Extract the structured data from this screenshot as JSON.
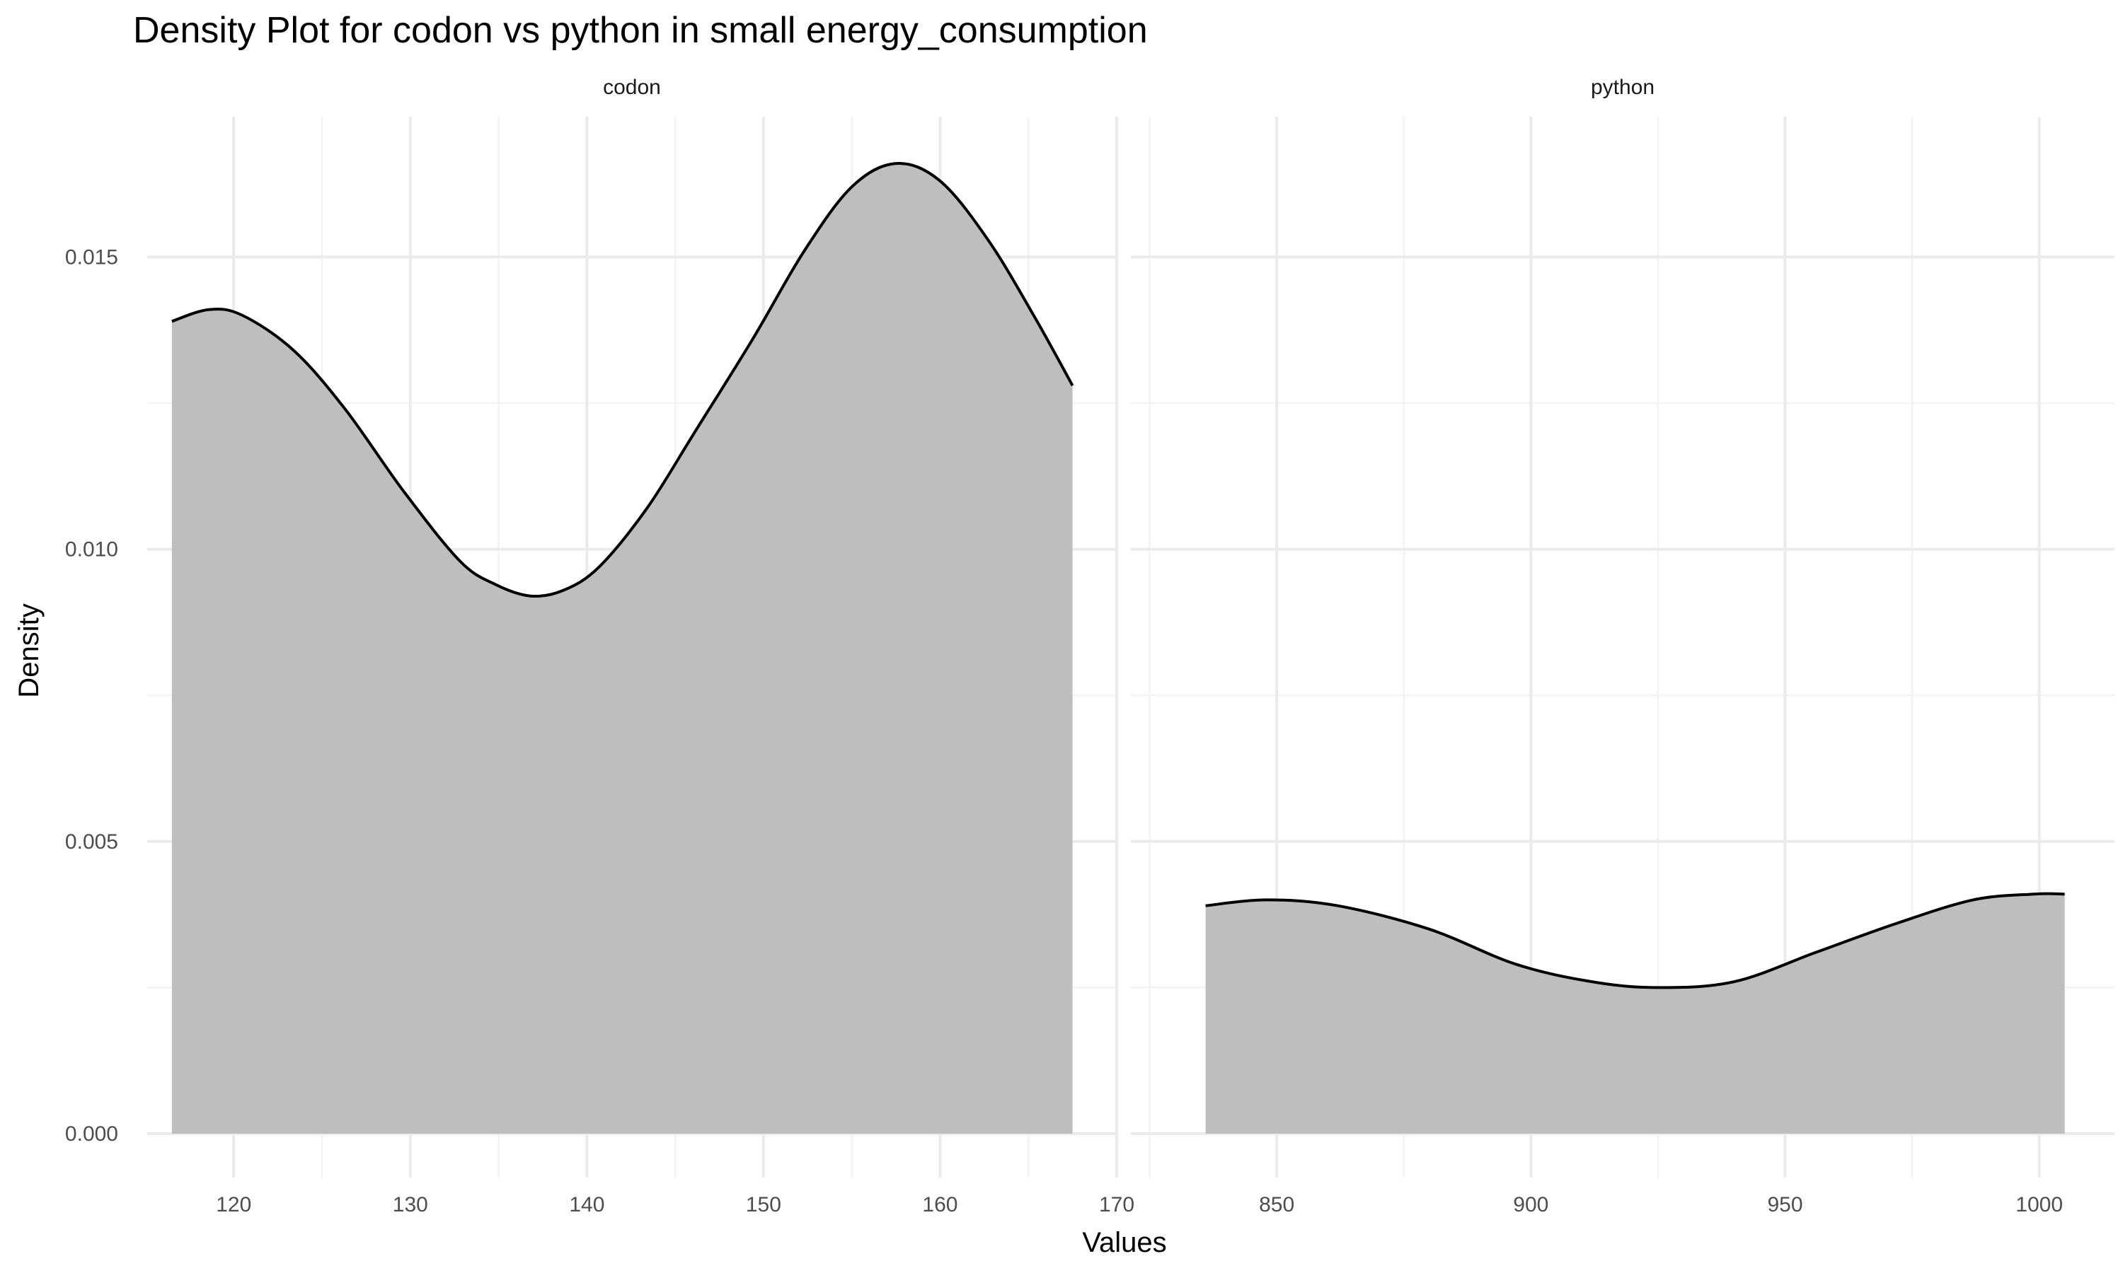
{
  "chart_data": {
    "type": "area",
    "title": "Density Plot for codon vs python in small energy_consumption",
    "xlabel": "Values",
    "ylabel": "Density",
    "ylim": [
      -0.00075,
      0.0174
    ],
    "y_ticks": [
      0.0,
      0.005,
      0.01,
      0.015
    ],
    "y_tick_labels": [
      "0.000",
      "0.005",
      "0.010",
      "0.015"
    ],
    "grid": true,
    "legend": "none",
    "fill_color": "#bebebe",
    "line_color": "#000000",
    "facets": [
      {
        "label": "codon",
        "xlim": [
          115.1,
          170
        ],
        "x_ticks": [
          120,
          130,
          140,
          150,
          160,
          170
        ],
        "x_tick_labels": [
          "120",
          "130",
          "140",
          "150",
          "160",
          "170"
        ],
        "x": [
          116.5,
          118.6,
          120.5,
          123.4,
          126.3,
          129.6,
          132.8,
          134.8,
          136.8,
          138.7,
          140.7,
          143.4,
          146.1,
          149.4,
          152.3,
          155.0,
          157.5,
          160.0,
          162.7,
          165.3,
          167.5
        ],
        "y": [
          0.0139,
          0.0141,
          0.014,
          0.0134,
          0.0124,
          0.011,
          0.0098,
          0.0094,
          0.0092,
          0.0093,
          0.0097,
          0.0107,
          0.012,
          0.0136,
          0.0151,
          0.0162,
          0.0166,
          0.0163,
          0.0153,
          0.014,
          0.0128
        ]
      },
      {
        "label": "python",
        "xlim": [
          821.3,
          1014.8
        ],
        "x_ticks": [
          850,
          900,
          950,
          1000
        ],
        "x_tick_labels": [
          "850",
          "900",
          "950",
          "1000"
        ],
        "x": [
          836,
          848,
          862,
          880,
          897,
          912,
          925,
          940,
          956,
          972,
          987,
          999,
          1005
        ],
        "y": [
          0.0039,
          0.004,
          0.0039,
          0.0035,
          0.0029,
          0.0026,
          0.0025,
          0.0026,
          0.0031,
          0.0036,
          0.004,
          0.0041,
          0.0041
        ]
      }
    ]
  }
}
